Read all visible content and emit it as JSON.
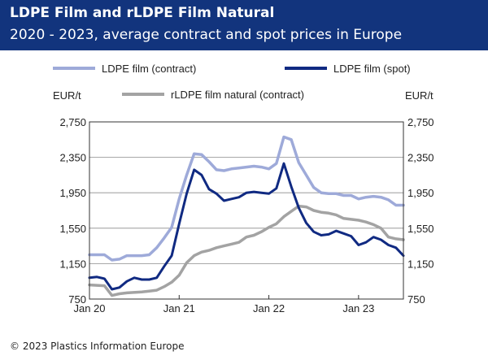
{
  "header": {
    "title": "LDPE Film and rLDPE Film Natural",
    "subtitle": "2020 - 2023, average contract and spot prices in Europe"
  },
  "footer": {
    "copyright": "© 2023 Plastics Information Europe"
  },
  "chart_data": {
    "type": "line",
    "ylabel_left": "EUR/t",
    "ylabel_right": "EUR/t",
    "ylim": [
      750,
      2750
    ],
    "yticks": [
      750,
      1150,
      1550,
      1950,
      2350,
      2750
    ],
    "ytick_labels": [
      "750",
      "1,150",
      "1,550",
      "1,950",
      "2,350",
      "2,750"
    ],
    "xlim": [
      "2020-01",
      "2023-07"
    ],
    "xticks": [
      "2020-01",
      "2021-01",
      "2022-01",
      "2023-01"
    ],
    "xtick_labels": [
      "Jan 20",
      "Jan 21",
      "Jan 22",
      "Jan 23"
    ],
    "grid": "horizontal",
    "legend_position": "top",
    "series": [
      {
        "name": "LDPE film (contract)",
        "color": "#9eaad9",
        "points": [
          [
            "2020-01",
            1250
          ],
          [
            "2020-03",
            1250
          ],
          [
            "2020-04",
            1190
          ],
          [
            "2020-05",
            1200
          ],
          [
            "2020-06",
            1240
          ],
          [
            "2020-08",
            1240
          ],
          [
            "2020-09",
            1250
          ],
          [
            "2020-10",
            1330
          ],
          [
            "2020-11",
            1440
          ],
          [
            "2020-12",
            1560
          ],
          [
            "2021-01",
            1880
          ],
          [
            "2021-02",
            2150
          ],
          [
            "2021-03",
            2390
          ],
          [
            "2021-04",
            2380
          ],
          [
            "2021-05",
            2300
          ],
          [
            "2021-06",
            2210
          ],
          [
            "2021-07",
            2200
          ],
          [
            "2021-08",
            2220
          ],
          [
            "2021-09",
            2230
          ],
          [
            "2021-10",
            2240
          ],
          [
            "2021-11",
            2250
          ],
          [
            "2021-12",
            2240
          ],
          [
            "2022-01",
            2220
          ],
          [
            "2022-02",
            2280
          ],
          [
            "2022-03",
            2580
          ],
          [
            "2022-04",
            2550
          ],
          [
            "2022-05",
            2290
          ],
          [
            "2022-06",
            2150
          ],
          [
            "2022-07",
            2010
          ],
          [
            "2022-08",
            1950
          ],
          [
            "2022-09",
            1940
          ],
          [
            "2022-10",
            1940
          ],
          [
            "2022-11",
            1920
          ],
          [
            "2022-12",
            1920
          ],
          [
            "2023-01",
            1880
          ],
          [
            "2023-02",
            1900
          ],
          [
            "2023-03",
            1910
          ],
          [
            "2023-04",
            1900
          ],
          [
            "2023-05",
            1870
          ],
          [
            "2023-06",
            1810
          ],
          [
            "2023-07",
            1810
          ]
        ]
      },
      {
        "name": "LDPE film (spot)",
        "color": "#102a82",
        "points": [
          [
            "2020-01",
            990
          ],
          [
            "2020-02",
            1000
          ],
          [
            "2020-03",
            980
          ],
          [
            "2020-04",
            860
          ],
          [
            "2020-05",
            880
          ],
          [
            "2020-06",
            950
          ],
          [
            "2020-07",
            990
          ],
          [
            "2020-08",
            970
          ],
          [
            "2020-09",
            970
          ],
          [
            "2020-10",
            990
          ],
          [
            "2020-11",
            1120
          ],
          [
            "2020-12",
            1240
          ],
          [
            "2021-01",
            1600
          ],
          [
            "2021-02",
            1940
          ],
          [
            "2021-03",
            2210
          ],
          [
            "2021-04",
            2150
          ],
          [
            "2021-05",
            1990
          ],
          [
            "2021-06",
            1940
          ],
          [
            "2021-07",
            1860
          ],
          [
            "2021-08",
            1880
          ],
          [
            "2021-09",
            1900
          ],
          [
            "2021-10",
            1950
          ],
          [
            "2021-11",
            1960
          ],
          [
            "2021-12",
            1950
          ],
          [
            "2022-01",
            1940
          ],
          [
            "2022-02",
            2000
          ],
          [
            "2022-03",
            2280
          ],
          [
            "2022-04",
            2020
          ],
          [
            "2022-05",
            1780
          ],
          [
            "2022-06",
            1610
          ],
          [
            "2022-07",
            1510
          ],
          [
            "2022-08",
            1470
          ],
          [
            "2022-09",
            1480
          ],
          [
            "2022-10",
            1520
          ],
          [
            "2022-11",
            1490
          ],
          [
            "2022-12",
            1460
          ],
          [
            "2023-01",
            1360
          ],
          [
            "2023-02",
            1390
          ],
          [
            "2023-03",
            1450
          ],
          [
            "2023-04",
            1420
          ],
          [
            "2023-05",
            1360
          ],
          [
            "2023-06",
            1330
          ],
          [
            "2023-07",
            1240
          ]
        ]
      },
      {
        "name": "rLDPE film natural (contract)",
        "color": "#a3a3a3",
        "points": [
          [
            "2020-01",
            910
          ],
          [
            "2020-03",
            900
          ],
          [
            "2020-04",
            790
          ],
          [
            "2020-05",
            810
          ],
          [
            "2020-06",
            820
          ],
          [
            "2020-08",
            830
          ],
          [
            "2020-09",
            840
          ],
          [
            "2020-10",
            850
          ],
          [
            "2020-11",
            890
          ],
          [
            "2020-12",
            940
          ],
          [
            "2021-01",
            1020
          ],
          [
            "2021-02",
            1160
          ],
          [
            "2021-03",
            1240
          ],
          [
            "2021-04",
            1280
          ],
          [
            "2021-05",
            1300
          ],
          [
            "2021-06",
            1330
          ],
          [
            "2021-07",
            1350
          ],
          [
            "2021-08",
            1370
          ],
          [
            "2021-09",
            1390
          ],
          [
            "2021-10",
            1450
          ],
          [
            "2021-11",
            1470
          ],
          [
            "2021-12",
            1510
          ],
          [
            "2022-01",
            1560
          ],
          [
            "2022-02",
            1600
          ],
          [
            "2022-03",
            1680
          ],
          [
            "2022-04",
            1740
          ],
          [
            "2022-05",
            1800
          ],
          [
            "2022-06",
            1790
          ],
          [
            "2022-07",
            1750
          ],
          [
            "2022-08",
            1730
          ],
          [
            "2022-09",
            1720
          ],
          [
            "2022-10",
            1700
          ],
          [
            "2022-11",
            1660
          ],
          [
            "2022-12",
            1650
          ],
          [
            "2023-01",
            1640
          ],
          [
            "2023-02",
            1620
          ],
          [
            "2023-03",
            1590
          ],
          [
            "2023-04",
            1550
          ],
          [
            "2023-05",
            1450
          ],
          [
            "2023-06",
            1430
          ],
          [
            "2023-07",
            1420
          ]
        ]
      }
    ]
  }
}
